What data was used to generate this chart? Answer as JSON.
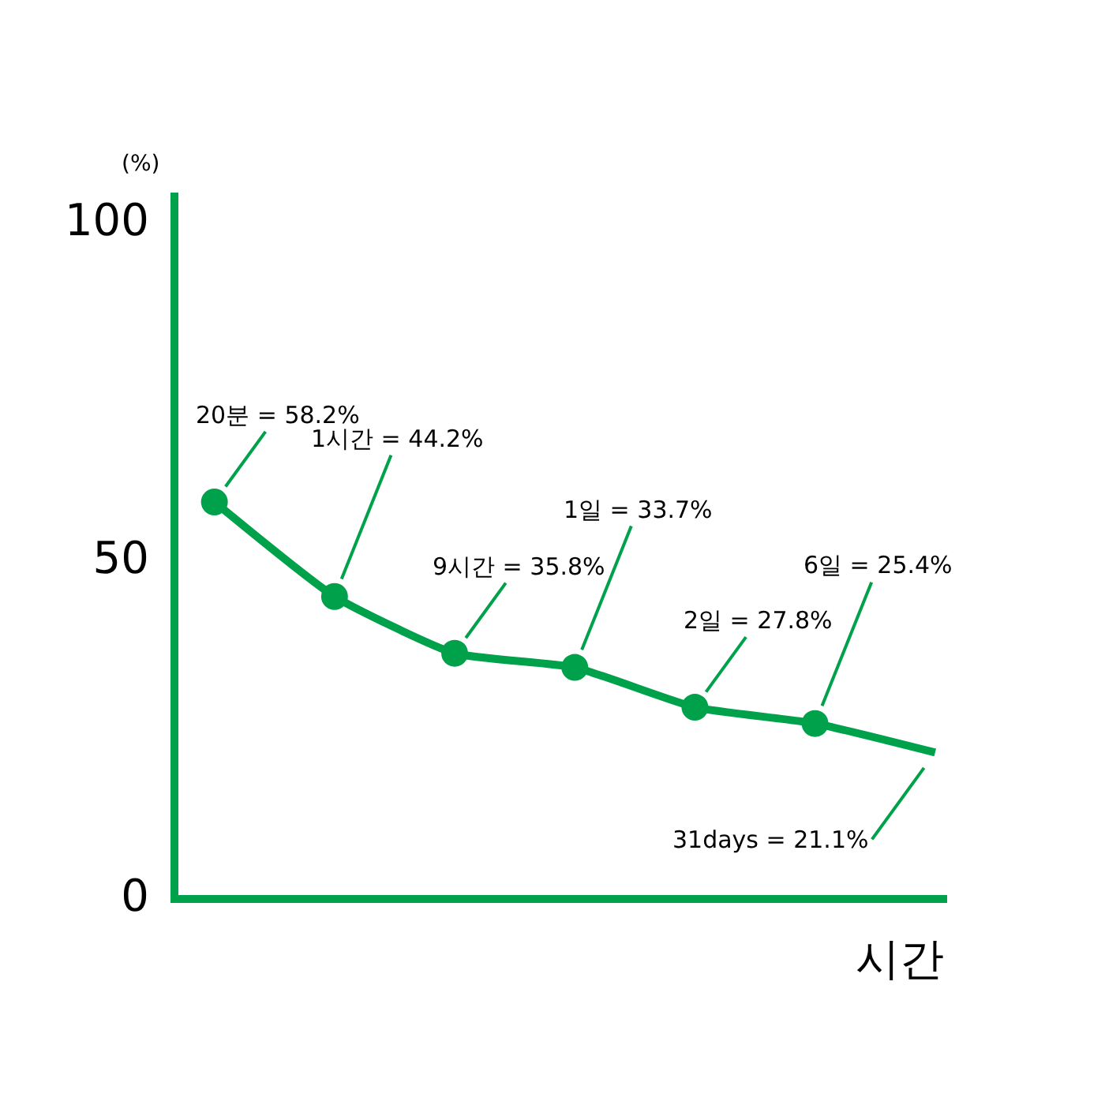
{
  "chart_data": {
    "type": "line",
    "xlabel": "시간",
    "ylabel": "(%)",
    "categories": [
      null,
      null,
      null,
      null,
      null,
      null,
      null
    ],
    "series": [
      {
        "color": "#00a14b",
        "marker": "none",
        "values": [
          58.2,
          44.2,
          35.8,
          33.7,
          27.8,
          25.4,
          21.1
        ],
        "value_labels": [
          "20분 = 58.2%",
          "1시간 = 44.2%",
          "9시간 = 35.8%",
          "1일 = 33.7%",
          "2일 = 27.8%",
          "6일 = 25.4%",
          "31days = 21.1%"
        ]
      },
      {
        "type": "scatter",
        "color": "#00a14b",
        "marker": "circle",
        "values": [
          58.2,
          44.2,
          35.8,
          33.7,
          27.8,
          25.4,
          null
        ]
      }
    ],
    "ylim": [
      0,
      104
    ],
    "yticks": [
      0,
      50,
      100
    ],
    "tick_labels": "y"
  }
}
